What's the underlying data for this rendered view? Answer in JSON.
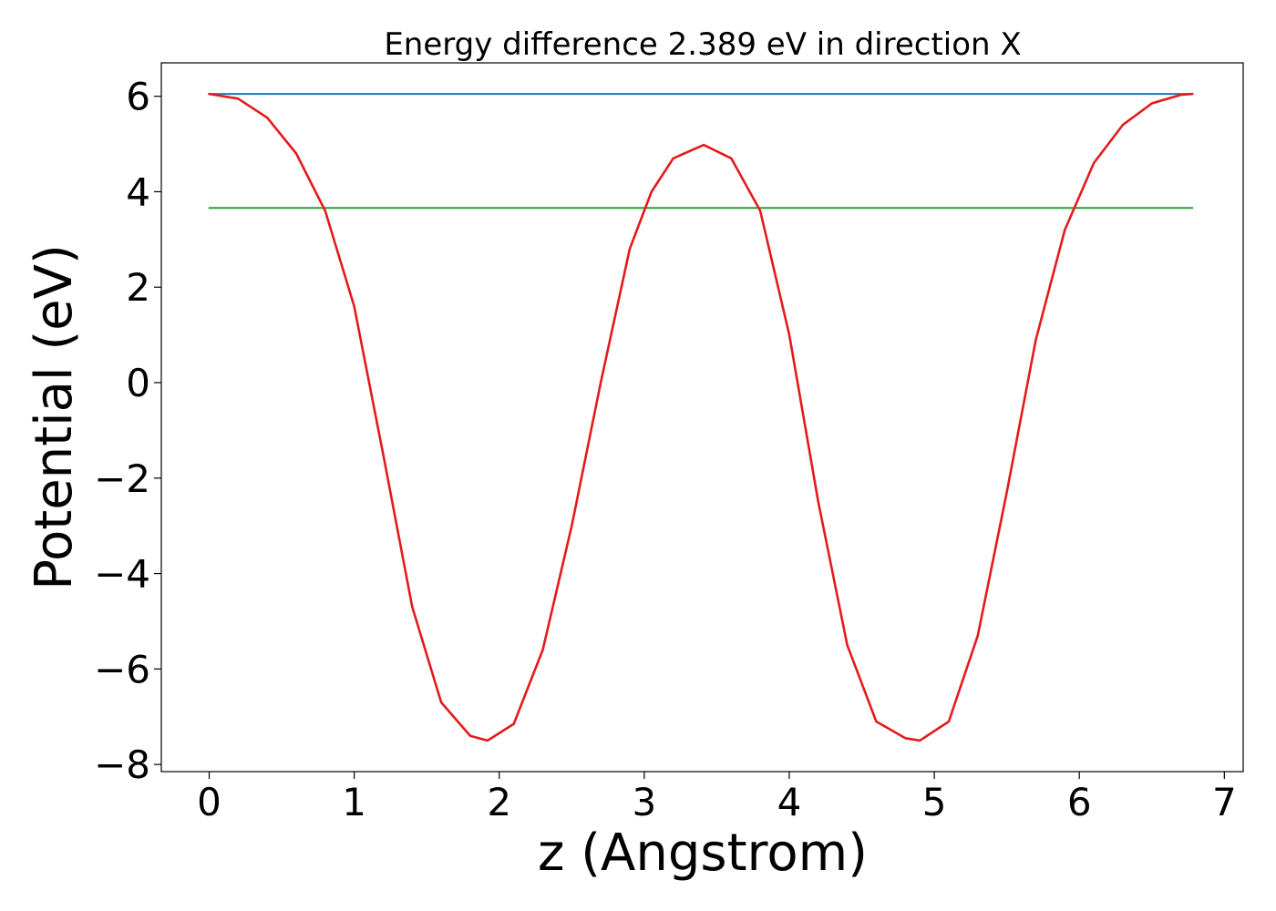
{
  "chart_data": {
    "type": "line",
    "title": "Energy difference 2.389 eV in direction X",
    "xlabel": "z (Angstrom)",
    "ylabel": "Potential (eV)",
    "xlim": [
      -0.33,
      7.13
    ],
    "ylim": [
      -8.15,
      6.7
    ],
    "grid": false,
    "legend": "none",
    "xticks": [
      {
        "value": 0,
        "label": "0"
      },
      {
        "value": 1,
        "label": "1"
      },
      {
        "value": 2,
        "label": "2"
      },
      {
        "value": 3,
        "label": "3"
      },
      {
        "value": 4,
        "label": "4"
      },
      {
        "value": 5,
        "label": "5"
      },
      {
        "value": 6,
        "label": "6"
      },
      {
        "value": 7,
        "label": "7"
      }
    ],
    "yticks": [
      {
        "value": 6,
        "label": "6"
      },
      {
        "value": 4,
        "label": "4"
      },
      {
        "value": 2,
        "label": "2"
      },
      {
        "value": 0,
        "label": "0"
      },
      {
        "value": -2,
        "label": "−2"
      },
      {
        "value": -4,
        "label": "−4"
      },
      {
        "value": -6,
        "label": "−6"
      },
      {
        "value": -8,
        "label": "−8"
      }
    ],
    "series": [
      {
        "color": "#1f77b4",
        "style": "line",
        "x": [
          0,
          6.78
        ],
        "y": [
          6.05,
          6.05
        ]
      },
      {
        "color": "#2ca02c",
        "style": "line",
        "x": [
          0,
          6.78
        ],
        "y": [
          3.66,
          3.66
        ]
      },
      {
        "color": "#e41a1c",
        "style": "line",
        "x": [
          0,
          0.2,
          0.4,
          0.6,
          0.8,
          1.0,
          1.2,
          1.4,
          1.6,
          1.8,
          1.92,
          2.1,
          2.3,
          2.5,
          2.7,
          2.9,
          3.05,
          3.2,
          3.41,
          3.6,
          3.8,
          4.0,
          4.2,
          4.4,
          4.6,
          4.8,
          4.9,
          5.1,
          5.3,
          5.5,
          5.7,
          5.9,
          6.1,
          6.3,
          6.5,
          6.7,
          6.78
        ],
        "y": [
          6.05,
          5.95,
          5.55,
          4.8,
          3.6,
          1.6,
          -1.5,
          -4.7,
          -6.7,
          -7.4,
          -7.5,
          -7.15,
          -5.6,
          -3.0,
          0.0,
          2.8,
          4.0,
          4.7,
          4.98,
          4.7,
          3.6,
          1.0,
          -2.5,
          -5.5,
          -7.1,
          -7.45,
          -7.5,
          -7.1,
          -5.3,
          -2.3,
          0.9,
          3.2,
          4.6,
          5.4,
          5.85,
          6.03,
          6.05
        ]
      }
    ]
  }
}
